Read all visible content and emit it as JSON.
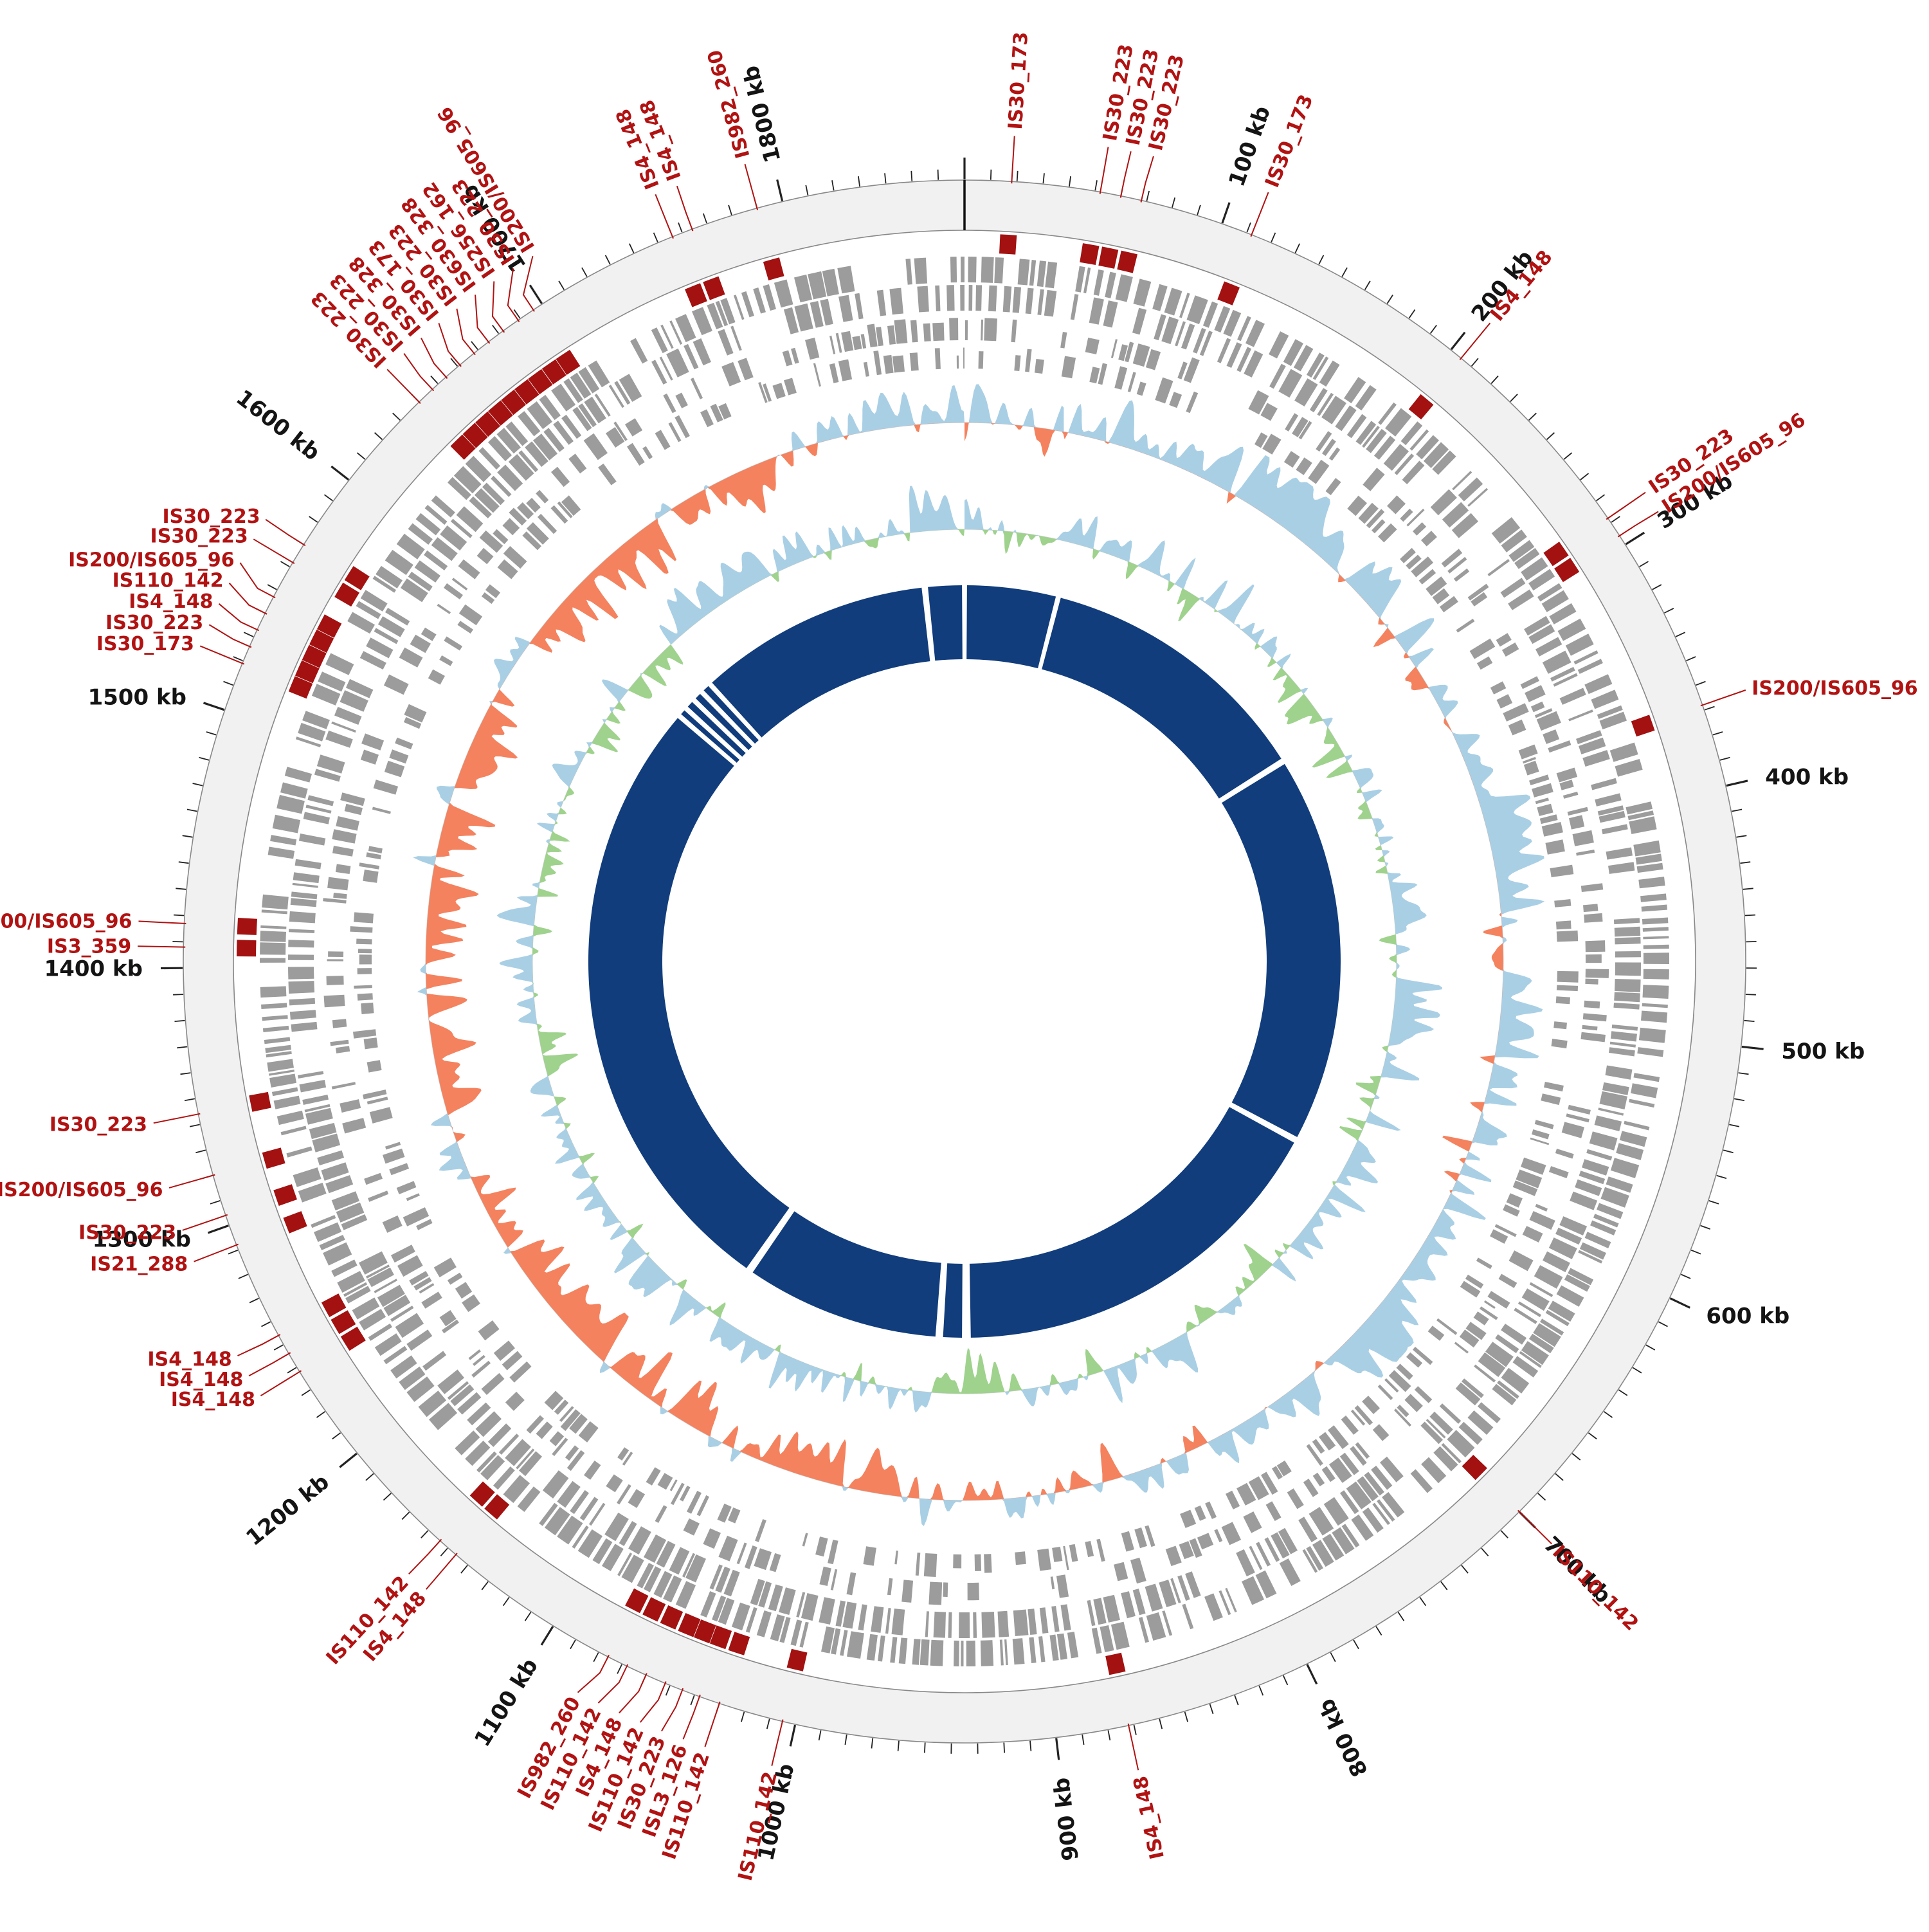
{
  "chart_data": {
    "type": "circos-genome-plot",
    "title": "",
    "genome_length_kb": 1870,
    "unit": "kb",
    "axis": {
      "minor_tick_kb": 10,
      "major_tick_kb": 100,
      "tick_labels": [
        "100 kb",
        "200 kb",
        "300 kb",
        "400 kb",
        "500 kb",
        "600 kb",
        "700 kb",
        "800 kb",
        "900 kb",
        "1000 kb",
        "1100 kb",
        "1200 kb",
        "1300 kb",
        "1400 kb",
        "1500 kb",
        "1600 kb",
        "1700 kb",
        "1800 kb"
      ]
    },
    "colors": {
      "scale_band": "#f1f1f1",
      "scale_band_edge": "#888888",
      "tick": "#222222",
      "gene_block": "#9c9c9c",
      "is_mark": "#a31111",
      "is_label": "#b11212",
      "leader_line": "#b11212",
      "gc_positive": "#a9cfe5",
      "gc_negative": "#f4825e",
      "skew_positive": "#a9cfe5",
      "skew_negative": "#9fd28d",
      "inner_ring": "#113d7c",
      "kb_label": "#141414",
      "baseline": "#cccccc"
    },
    "tracks": [
      {
        "id": "scale-ring",
        "type": "axis",
        "unit": "kb"
      },
      {
        "id": "is-element-marks",
        "type": "tile",
        "color": "#a31111"
      },
      {
        "id": "genes-outer",
        "type": "tile-two-strand",
        "color": "#9c9c9c"
      },
      {
        "id": "genes-inner",
        "type": "tile-two-strand",
        "color": "#9c9c9c"
      },
      {
        "id": "gc-content",
        "type": "diverging-area",
        "positive_color": "#a9cfe5",
        "negative_color": "#f4825e"
      },
      {
        "id": "gc-skew",
        "type": "diverging-area",
        "positive_color": "#a9cfe5",
        "negative_color": "#9fd28d"
      },
      {
        "id": "assembly-segments",
        "type": "segments",
        "color": "#113d7c"
      }
    ],
    "is_elements": [
      {
        "name": "IS30_173",
        "kb": 18
      },
      {
        "name": "IS30_223",
        "kb": 52
      },
      {
        "name": "IS30_223",
        "kb": 60
      },
      {
        "name": "IS30_223",
        "kb": 68
      },
      {
        "name": "IS30_173",
        "kb": 112
      },
      {
        "name": "IS4_148",
        "kb": 205
      },
      {
        "name": "IS30_223",
        "kb": 288
      },
      {
        "name": "IS200/IS605_96",
        "kb": 296
      },
      {
        "name": "IS200/IS605_96",
        "kb": 368
      },
      {
        "name": "IS110_142",
        "kb": 700
      },
      {
        "name": "IS4_148",
        "kb": 872
      },
      {
        "name": "IS110_142",
        "kb": 1005
      },
      {
        "name": "IS110_142",
        "kb": 1030
      },
      {
        "name": "ISL3_126",
        "kb": 1038
      },
      {
        "name": "IS30_223",
        "kb": 1045
      },
      {
        "name": "IS110_142",
        "kb": 1052
      },
      {
        "name": "IS4_148",
        "kb": 1060
      },
      {
        "name": "IS110_142",
        "kb": 1068
      },
      {
        "name": "IS982_260",
        "kb": 1076
      },
      {
        "name": "IS4_148",
        "kb": 1146
      },
      {
        "name": "IS110_142",
        "kb": 1154
      },
      {
        "name": "IS4_148",
        "kb": 1238
      },
      {
        "name": "IS4_148",
        "kb": 1246
      },
      {
        "name": "IS4_148",
        "kb": 1254
      },
      {
        "name": "IS21_288",
        "kb": 1292
      },
      {
        "name": "IS30_223",
        "kb": 1304
      },
      {
        "name": "IS200/IS605_96",
        "kb": 1320
      },
      {
        "name": "IS30_223",
        "kb": 1344
      },
      {
        "name": "IS3_359",
        "kb": 1408
      },
      {
        "name": "IS200/IS605_96",
        "kb": 1417
      },
      {
        "name": "IS30_173",
        "kb": 1519
      },
      {
        "name": "IS30_223",
        "kb": 1526
      },
      {
        "name": "IS4_148",
        "kb": 1533
      },
      {
        "name": "IS110_142",
        "kb": 1540
      },
      {
        "name": "IS200/IS605_96",
        "kb": 1547
      },
      {
        "name": "IS30_223",
        "kb": 1562
      },
      {
        "name": "IS30_223",
        "kb": 1570
      },
      {
        "name": "IS30_223",
        "kb": 1640
      },
      {
        "name": "IS30_223",
        "kb": 1647
      },
      {
        "name": "IS30_328",
        "kb": 1654
      },
      {
        "name": "IS30_173",
        "kb": 1661
      },
      {
        "name": "IS30_223",
        "kb": 1668
      },
      {
        "name": "IS630_328",
        "kb": 1675
      },
      {
        "name": "IS256_162",
        "kb": 1682
      },
      {
        "name": "IS30_223",
        "kb": 1689
      },
      {
        "name": "IS200/IS605_96",
        "kb": 1696
      },
      {
        "name": "IS4_148",
        "kb": 1756
      },
      {
        "name": "IS4_148",
        "kb": 1764
      },
      {
        "name": "IS982_260",
        "kb": 1790
      }
    ],
    "inner_segments": [
      [
        2,
        73
      ],
      [
        77,
        298
      ],
      [
        303,
        612
      ],
      [
        617,
        930
      ],
      [
        937,
        952
      ],
      [
        958,
        1113
      ],
      [
        1119,
        1612
      ],
      [
        1616,
        1620
      ],
      [
        1624,
        1629
      ],
      [
        1633,
        1638
      ],
      [
        1642,
        1647
      ],
      [
        1651,
        1836
      ],
      [
        1841,
        1868
      ]
    ],
    "render": {
      "seeds": {
        "genes_a": 11,
        "genes_b": 23,
        "gc": 7,
        "skew": 19
      }
    }
  }
}
